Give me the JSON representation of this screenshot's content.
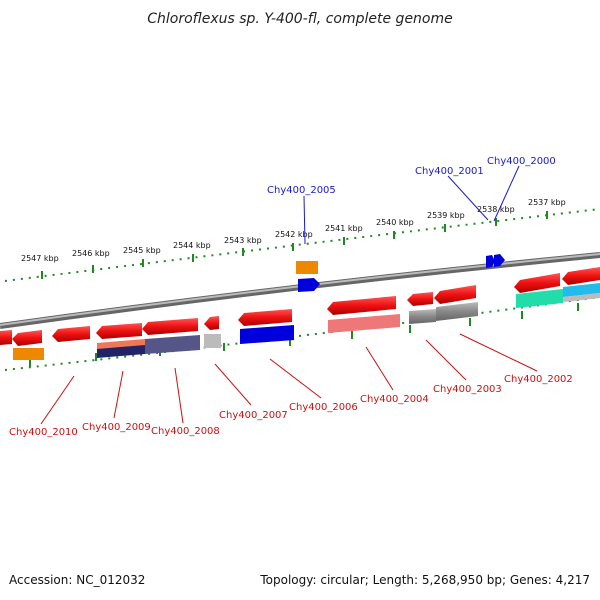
{
  "title": "Chloroflexus sp. Y-400-fl, complete genome",
  "footer": {
    "accession": "Accession: NC_012032",
    "topology": "Topology: circular; Length: 5,268,950 bp; Genes: 4,217"
  },
  "scale_labels": [
    "2547 kbp",
    "2546 kbp",
    "2545 kbp",
    "2544 kbp",
    "2543 kbp",
    "2542 kbp",
    "2541 kbp",
    "2540 kbp",
    "2539 kbp",
    "2538 kbp",
    "2537 kbp"
  ],
  "gene_labels_top": [
    "Chy400_2005",
    "Chy400_2001",
    "Chy400_2000"
  ],
  "gene_labels_bottom": [
    "Chy400_2010",
    "Chy400_2009",
    "Chy400_2008",
    "Chy400_2007",
    "Chy400_2006",
    "Chy400_2004",
    "Chy400_2003",
    "Chy400_2002"
  ],
  "colors": {
    "cds": "#ee1111",
    "backbone": "#888888",
    "ticks": "#228822",
    "label_top": "#1a1acc",
    "label_bottom": "#cc1111",
    "orange_feature": "#ee8800",
    "blue_feature": "#0000dd",
    "navy_feature": "#333377",
    "salmon_feature": "#ee7777",
    "gray_feature": "#666666",
    "lightgray_feature": "#bbbbbb",
    "green_feature": "#22ddaa",
    "cyan_feature": "#22bbee"
  }
}
